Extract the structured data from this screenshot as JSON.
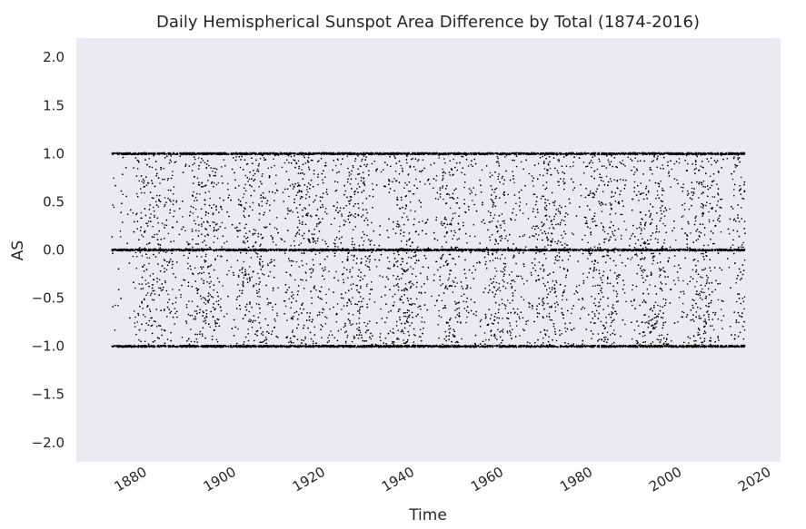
{
  "chart_data": {
    "type": "scatter",
    "title": "Daily Hemispherical Sunspot Area Difference by Total (1874-2016)",
    "xlabel": "Time",
    "ylabel": "AS",
    "x_range": [
      1866,
      2024
    ],
    "ylim": [
      -2.2,
      2.2
    ],
    "x_ticks": [
      "1880",
      "1900",
      "1920",
      "1940",
      "1960",
      "1980",
      "2000",
      "2020"
    ],
    "y_ticks": [
      "2.0",
      "1.5",
      "1.0",
      "0.5",
      "0.0",
      "−0.5",
      "−1.0",
      "−1.5",
      "−2.0"
    ],
    "grid": false,
    "series": [
      {
        "color": "#000000",
        "x_start": 1874,
        "x_end": 2016,
        "y_min": -1.0,
        "y_max": 1.0,
        "plateau_values": [
          1.0,
          0.0,
          -1.0
        ]
      }
    ],
    "colors": {
      "plot_background": "#eaeaf2",
      "marker": "#000000",
      "text": "#262626"
    }
  }
}
